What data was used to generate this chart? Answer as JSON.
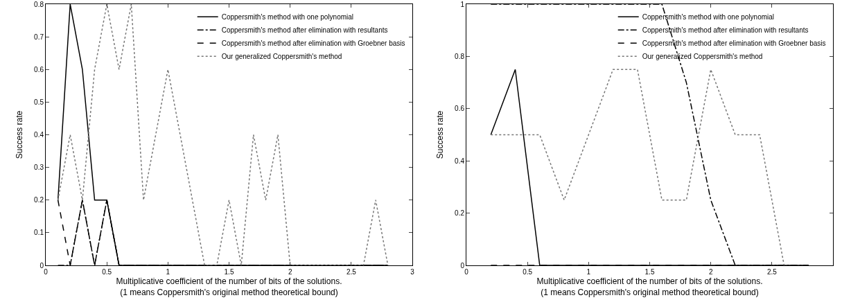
{
  "chart_data": [
    {
      "type": "line",
      "xlabel": "Multiplicative coefficient of the number of bits of the solutions.\n(1 means Coppersmith's original method theoretical bound)",
      "ylabel": "Success rate",
      "xlim": [
        0,
        3
      ],
      "xticks": [
        0,
        0.5,
        1,
        1.5,
        2,
        2.5,
        3
      ],
      "ylim": [
        0,
        0.8
      ],
      "yticks": [
        0,
        0.1,
        0.2,
        0.3,
        0.4,
        0.5,
        0.6,
        0.7,
        0.8
      ],
      "grid": false,
      "legend": "top right",
      "marker": "none",
      "x": [
        0.1,
        0.2,
        0.3,
        0.4,
        0.5,
        0.6,
        0.7,
        0.8,
        0.9,
        1.0,
        1.1,
        1.2,
        1.3,
        1.4,
        1.5,
        1.6,
        1.7,
        1.8,
        1.9,
        2.0,
        2.1,
        2.2,
        2.3,
        2.4,
        2.5,
        2.6,
        2.7,
        2.8
      ],
      "series": [
        {
          "name": "Coppersmith's method with one polynomial",
          "color": "#000000",
          "line_style": "solid",
          "values": [
            0.2,
            0.8,
            0.6,
            0.2,
            0.2,
            0,
            0,
            0,
            0,
            0,
            0,
            0,
            0,
            0,
            0,
            0,
            0,
            0,
            0,
            0,
            0,
            0,
            0,
            0,
            0,
            0,
            0,
            0
          ]
        },
        {
          "name": "Coppersmith's method after elimination with resultants",
          "color": "#000000",
          "line_style": "dashdot",
          "values": [
            0,
            0,
            0.2,
            0,
            0.2,
            0,
            0,
            0,
            0,
            0,
            0,
            0,
            0,
            0,
            0,
            0,
            0,
            0,
            0,
            0,
            0,
            0,
            0,
            0,
            0,
            0,
            0,
            0
          ]
        },
        {
          "name": "Coppersmith's method after elimination with Groebner basis",
          "color": "#000000",
          "line_style": "dashed",
          "values": [
            0.2,
            0,
            0.2,
            0,
            0.2,
            0,
            0,
            0,
            0,
            0,
            0,
            0,
            0,
            0,
            0,
            0,
            0,
            0,
            0,
            0,
            0,
            0,
            0,
            0,
            0,
            0,
            0,
            0
          ]
        },
        {
          "name": "Our generalized Coppersmith's method",
          "color": "#777777",
          "line_style": "dotted",
          "values": [
            0.2,
            0.4,
            0.2,
            0.6,
            0.8,
            0.6,
            0.8,
            0.2,
            0.4,
            0.6,
            0.4,
            0.2,
            0,
            0,
            0.2,
            0,
            0.4,
            0.2,
            0.4,
            0,
            0,
            0,
            0,
            0,
            0,
            0,
            0.2,
            0
          ]
        }
      ]
    },
    {
      "type": "line",
      "xlabel": "Multiplicative coefficient of the number of bits of the solutions.\n(1 means Coppersmith's original method theoretical bound)",
      "ylabel": "Success rate",
      "xlim": [
        0,
        3
      ],
      "xticks": [
        0,
        0.5,
        1,
        1.5,
        2,
        2.5
      ],
      "ylim": [
        0,
        1
      ],
      "yticks": [
        0,
        0.2,
        0.4,
        0.6,
        0.8,
        1
      ],
      "grid": false,
      "legend": "top right",
      "marker": "none",
      "x": [
        0.2,
        0.4,
        0.6,
        0.8,
        1.0,
        1.2,
        1.4,
        1.6,
        1.8,
        2.0,
        2.2,
        2.4,
        2.6,
        2.8
      ],
      "series": [
        {
          "name": "Coppersmith's method with one polynomial",
          "color": "#000000",
          "line_style": "solid",
          "values": [
            0.5,
            0.75,
            0,
            0,
            0,
            0,
            0,
            0,
            0,
            0,
            0,
            0,
            0,
            0
          ]
        },
        {
          "name": "Coppersmith's method after elimination with resultants",
          "color": "#000000",
          "line_style": "dashdot",
          "values": [
            1,
            1,
            1,
            1,
            1,
            1,
            1,
            1,
            0.7,
            0.25,
            0,
            0,
            0,
            0
          ]
        },
        {
          "name": "Coppersmith's method after elimination with Groebner basis",
          "color": "#000000",
          "line_style": "dashed",
          "values": [
            0,
            0,
            0,
            0,
            0,
            0,
            0,
            0,
            0,
            0,
            0,
            0,
            0,
            0
          ]
        },
        {
          "name": "Our generalized Coppersmith's method",
          "color": "#777777",
          "line_style": "dotted",
          "values": [
            0.5,
            0.5,
            0.5,
            0.25,
            0.5,
            0.75,
            0.75,
            0.25,
            0.25,
            0.75,
            0.5,
            0.5,
            0,
            null
          ]
        }
      ]
    }
  ]
}
